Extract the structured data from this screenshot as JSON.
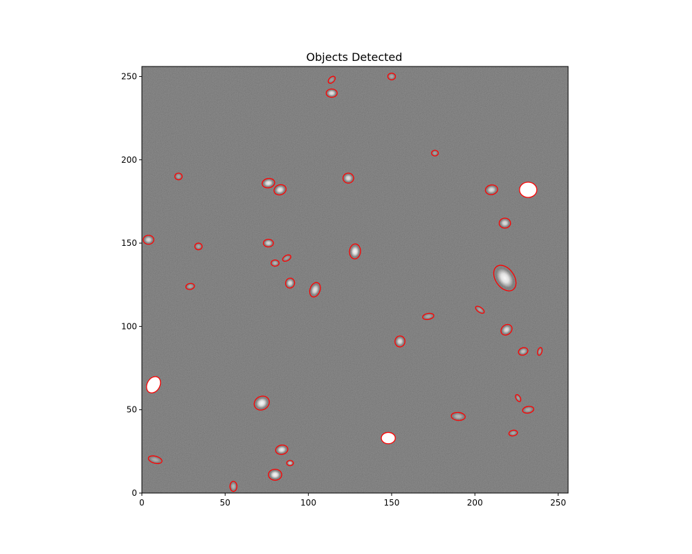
{
  "title": "Objects Detected",
  "colors": {
    "ellipse": "#ff0000",
    "frame": "#000000",
    "sky": "#6e6e6e"
  },
  "image_extent": {
    "x": [
      0,
      256
    ],
    "y": [
      0,
      256
    ]
  },
  "x_ticks": [
    0,
    50,
    100,
    150,
    200,
    250
  ],
  "y_ticks": [
    0,
    50,
    100,
    150,
    200,
    250
  ],
  "sources": [
    {
      "x": 114,
      "y": 248,
      "a": 2.5,
      "b": 1.6,
      "angle": 45,
      "brightness": 0.25
    },
    {
      "x": 150,
      "y": 250,
      "a": 2.3,
      "b": 2.0,
      "angle": 0,
      "brightness": 0.35
    },
    {
      "x": 114,
      "y": 240,
      "a": 3.3,
      "b": 2.5,
      "angle": 0,
      "brightness": 0.8
    },
    {
      "x": 176,
      "y": 204,
      "a": 2.0,
      "b": 1.7,
      "angle": 0,
      "brightness": 0.3
    },
    {
      "x": 22,
      "y": 190,
      "a": 2.2,
      "b": 2.0,
      "angle": 0,
      "brightness": 0.35
    },
    {
      "x": 76,
      "y": 186,
      "a": 3.8,
      "b": 2.8,
      "angle": 10,
      "brightness": 0.85
    },
    {
      "x": 83,
      "y": 182,
      "a": 3.7,
      "b": 3.0,
      "angle": 20,
      "brightness": 0.85
    },
    {
      "x": 124,
      "y": 189,
      "a": 3.2,
      "b": 3.0,
      "angle": 0,
      "brightness": 0.75
    },
    {
      "x": 210,
      "y": 182,
      "a": 3.7,
      "b": 2.9,
      "angle": 10,
      "brightness": 0.75
    },
    {
      "x": 232,
      "y": 182,
      "a": 5.2,
      "b": 4.6,
      "angle": 0,
      "brightness": 1.0,
      "filled": true
    },
    {
      "x": 218,
      "y": 162,
      "a": 3.4,
      "b": 3.0,
      "angle": 0,
      "brightness": 0.75
    },
    {
      "x": 4,
      "y": 152,
      "a": 3.2,
      "b": 2.7,
      "angle": 0,
      "brightness": 0.7
    },
    {
      "x": 34,
      "y": 148,
      "a": 2.2,
      "b": 2.0,
      "angle": 0,
      "brightness": 0.35
    },
    {
      "x": 76,
      "y": 150,
      "a": 3.0,
      "b": 2.3,
      "angle": 0,
      "brightness": 0.7
    },
    {
      "x": 128,
      "y": 145,
      "a": 4.5,
      "b": 3.3,
      "angle": 85,
      "brightness": 0.95
    },
    {
      "x": 80,
      "y": 138,
      "a": 2.4,
      "b": 1.9,
      "angle": 0,
      "brightness": 0.45
    },
    {
      "x": 87,
      "y": 141,
      "a": 2.7,
      "b": 1.6,
      "angle": 30,
      "brightness": 0.3
    },
    {
      "x": 89,
      "y": 126,
      "a": 3.0,
      "b": 2.7,
      "angle": 80,
      "brightness": 0.75
    },
    {
      "x": 104,
      "y": 122,
      "a": 4.5,
      "b": 3.0,
      "angle": 70,
      "brightness": 0.8
    },
    {
      "x": 29,
      "y": 124,
      "a": 2.6,
      "b": 1.8,
      "angle": 10,
      "brightness": 0.35
    },
    {
      "x": 218,
      "y": 129,
      "a": 8.5,
      "b": 5.6,
      "angle": -55,
      "brightness": 0.95
    },
    {
      "x": 203,
      "y": 110,
      "a": 3.0,
      "b": 1.5,
      "angle": -35,
      "brightness": 0.35
    },
    {
      "x": 172,
      "y": 106,
      "a": 3.4,
      "b": 1.8,
      "angle": 10,
      "brightness": 0.35
    },
    {
      "x": 219,
      "y": 98,
      "a": 3.6,
      "b": 2.9,
      "angle": 40,
      "brightness": 0.75
    },
    {
      "x": 155,
      "y": 91,
      "a": 3.3,
      "b": 3.0,
      "angle": 85,
      "brightness": 0.75
    },
    {
      "x": 229,
      "y": 85,
      "a": 2.9,
      "b": 2.2,
      "angle": 20,
      "brightness": 0.55
    },
    {
      "x": 239,
      "y": 85,
      "a": 2.4,
      "b": 1.3,
      "angle": 75,
      "brightness": 0.3
    },
    {
      "x": 7,
      "y": 65,
      "a": 5.2,
      "b": 3.8,
      "angle": 60,
      "brightness": 1.0,
      "filled": true
    },
    {
      "x": 72,
      "y": 54,
      "a": 4.7,
      "b": 4.0,
      "angle": 30,
      "brightness": 0.95
    },
    {
      "x": 226,
      "y": 57,
      "a": 2.3,
      "b": 1.3,
      "angle": -60,
      "brightness": 0.3
    },
    {
      "x": 232,
      "y": 50,
      "a": 3.4,
      "b": 2.0,
      "angle": 10,
      "brightness": 0.35
    },
    {
      "x": 190,
      "y": 46,
      "a": 4.2,
      "b": 2.4,
      "angle": -5,
      "brightness": 0.45
    },
    {
      "x": 148,
      "y": 33,
      "a": 4.2,
      "b": 3.4,
      "angle": 0,
      "brightness": 1.0,
      "filled": true
    },
    {
      "x": 223,
      "y": 36,
      "a": 2.6,
      "b": 1.7,
      "angle": 10,
      "brightness": 0.35
    },
    {
      "x": 84,
      "y": 26,
      "a": 3.7,
      "b": 2.8,
      "angle": 10,
      "brightness": 0.85
    },
    {
      "x": 8,
      "y": 20,
      "a": 4.2,
      "b": 2.1,
      "angle": -15,
      "brightness": 0.35
    },
    {
      "x": 89,
      "y": 18,
      "a": 2.0,
      "b": 1.6,
      "angle": 0,
      "brightness": 0.6
    },
    {
      "x": 80,
      "y": 11,
      "a": 4.0,
      "b": 3.3,
      "angle": 0,
      "brightness": 0.95
    },
    {
      "x": 55,
      "y": 4,
      "a": 3.0,
      "b": 2.1,
      "angle": 90,
      "brightness": 0.45
    }
  ]
}
